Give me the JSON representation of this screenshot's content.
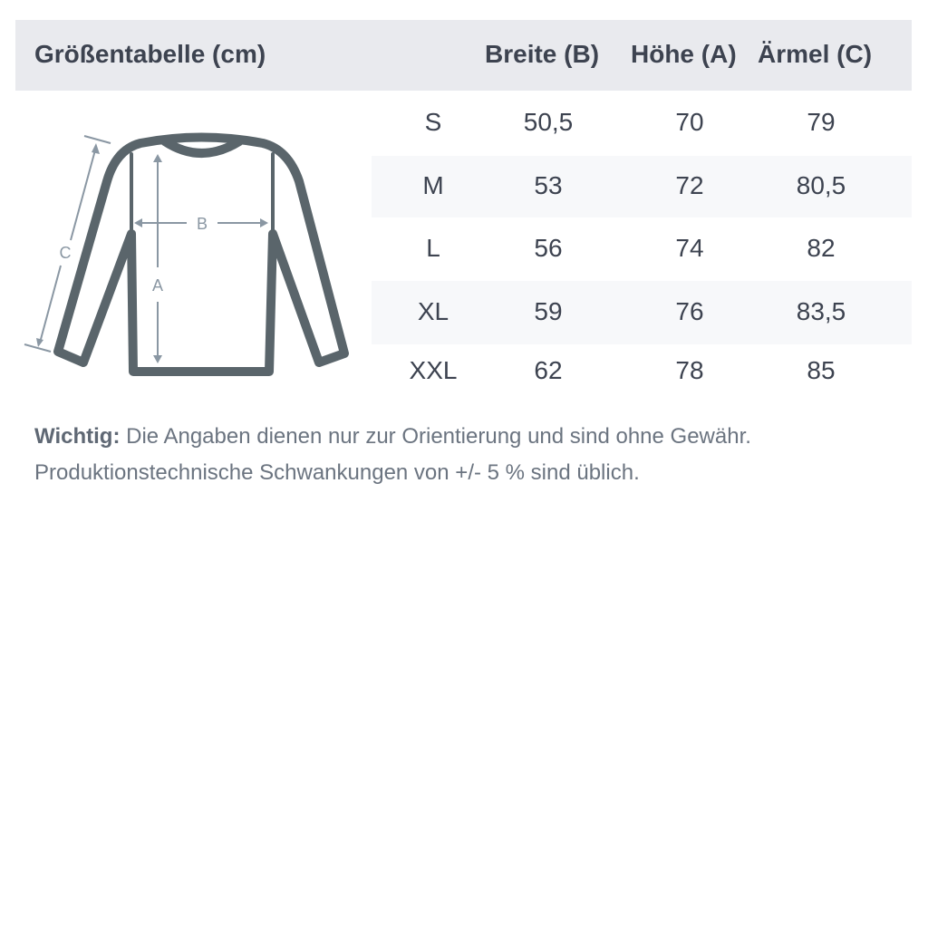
{
  "header": {
    "title": "Größentabelle (cm)",
    "columns": [
      "Breite (B)",
      "Höhe (A)",
      "Ärmel (C)"
    ]
  },
  "rows": [
    {
      "size": "S",
      "b": "50,5",
      "a": "70",
      "c": "79"
    },
    {
      "size": "M",
      "b": "53",
      "a": "72",
      "c": "80,5"
    },
    {
      "size": "L",
      "b": "56",
      "a": "74",
      "c": "82"
    },
    {
      "size": "XL",
      "b": "59",
      "a": "76",
      "c": "83,5"
    },
    {
      "size": "XXL",
      "b": "62",
      "a": "78",
      "c": "85"
    }
  ],
  "diagram": {
    "label_a": "A",
    "label_b": "B",
    "label_c": "C",
    "outline_color": "#5a656b",
    "measure_color": "#8a97a3"
  },
  "note": {
    "label": "Wichtig:",
    "line1": " Die Angaben dienen nur zur Orientierung und sind ohne Gewähr.",
    "line2": "Produktionstechnische Schwankungen von +/- 5 % sind üblich."
  },
  "colors": {
    "header_bg": "#e9eaee",
    "stripe_bg": "#f7f8fa",
    "text": "#3d4350"
  }
}
